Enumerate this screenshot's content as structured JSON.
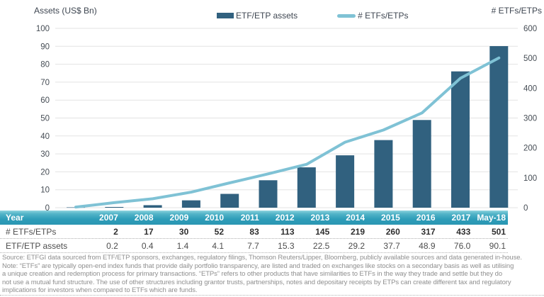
{
  "header": {
    "left_axis_title": "Assets (US$ Bn)",
    "right_axis_title": "# ETFs/ETPs",
    "legend": [
      {
        "label": "ETF/ETP assets",
        "swatch": "bar-swatch",
        "color": "#31617f"
      },
      {
        "label": "# ETFs/ETPs",
        "swatch": "line-swatch",
        "color": "#7fc2d5"
      }
    ]
  },
  "chart_data": {
    "type": "combo",
    "categories": [
      "2007",
      "2008",
      "2009",
      "2010",
      "2011",
      "2012",
      "2013",
      "2014",
      "2015",
      "2016",
      "2017",
      "May-18"
    ],
    "series": [
      {
        "name": "ETF/ETP assets",
        "type": "bar",
        "axis": "left",
        "values": [
          0.2,
          0.4,
          1.4,
          4.1,
          7.7,
          15.3,
          22.5,
          29.2,
          37.7,
          48.9,
          76.0,
          90.1
        ],
        "color": "#31617f"
      },
      {
        "name": "# ETFs/ETPs",
        "type": "line",
        "axis": "right",
        "values": [
          2,
          17,
          30,
          52,
          83,
          113,
          145,
          219,
          260,
          317,
          433,
          501
        ],
        "color": "#7fc2d5"
      }
    ],
    "left_axis": {
      "title": "Assets (US$ Bn)",
      "min": 0,
      "max": 100,
      "step": 10
    },
    "right_axis": {
      "title": "# ETFs/ETPs",
      "min": 0,
      "max": 600,
      "step": 100
    },
    "grid": true,
    "legend_position": "top",
    "grid_color": "#e3e3e3"
  },
  "table": {
    "header_label": "Year",
    "columns": [
      "2007",
      "2008",
      "2009",
      "2010",
      "2011",
      "2012",
      "2013",
      "2014",
      "2015",
      "2016",
      "2017",
      "May-18"
    ],
    "rows": [
      {
        "label": "# ETFs/ETPs",
        "bold_values": true,
        "values": [
          "2",
          "17",
          "30",
          "52",
          "83",
          "113",
          "145",
          "219",
          "260",
          "317",
          "433",
          "501"
        ]
      },
      {
        "label": "ETF/ETP assets",
        "bold_values": false,
        "values": [
          "0.2",
          "0.4",
          "1.4",
          "4.1",
          "7.7",
          "15.3",
          "22.5",
          "29.2",
          "37.7",
          "48.9",
          "76.0",
          "90.1"
        ]
      }
    ]
  },
  "footnote": {
    "lines": [
      "Source: ETFGI data sourced from ETF/ETP sponsors, exchanges, regulatory filings, Thomson Reuters/Lipper, Bloomberg, publicly available sources and data generated in-house.",
      "Note: “ETFs” are typically open-end index funds that provide daily portfolio transparency, are listed and traded on exchanges like stocks on a secondary basis as well as utilising",
      "a unique creation and redemption process for primary transactions. “ETPs” refers to other products that have similarities to ETFs in the way they trade and settle but they do",
      "not use a mutual fund structure. The use of other structures including grantor trusts, partnerships, notes and depositary receipts by ETPs can create different tax and regulatory",
      "implications for investors when compared to ETFs which are funds."
    ]
  }
}
